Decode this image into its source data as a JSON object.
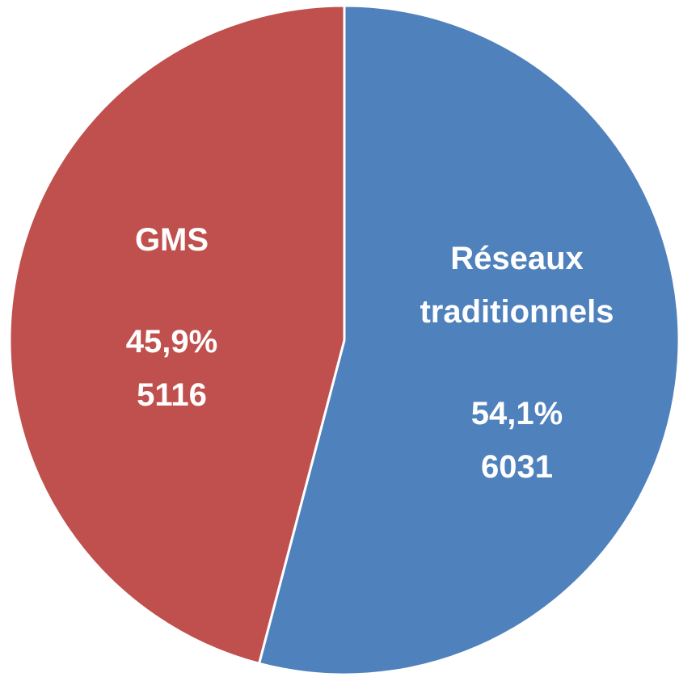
{
  "chart_data": {
    "type": "pie",
    "categories": [
      "Réseaux traditionnels",
      "GMS"
    ],
    "values": [
      54.1,
      45.9
    ],
    "value_labels": [
      "54,1%",
      "45,9%"
    ],
    "counts": [
      6031,
      5116
    ],
    "colors": [
      "#4f81bd",
      "#c0504d"
    ]
  }
}
